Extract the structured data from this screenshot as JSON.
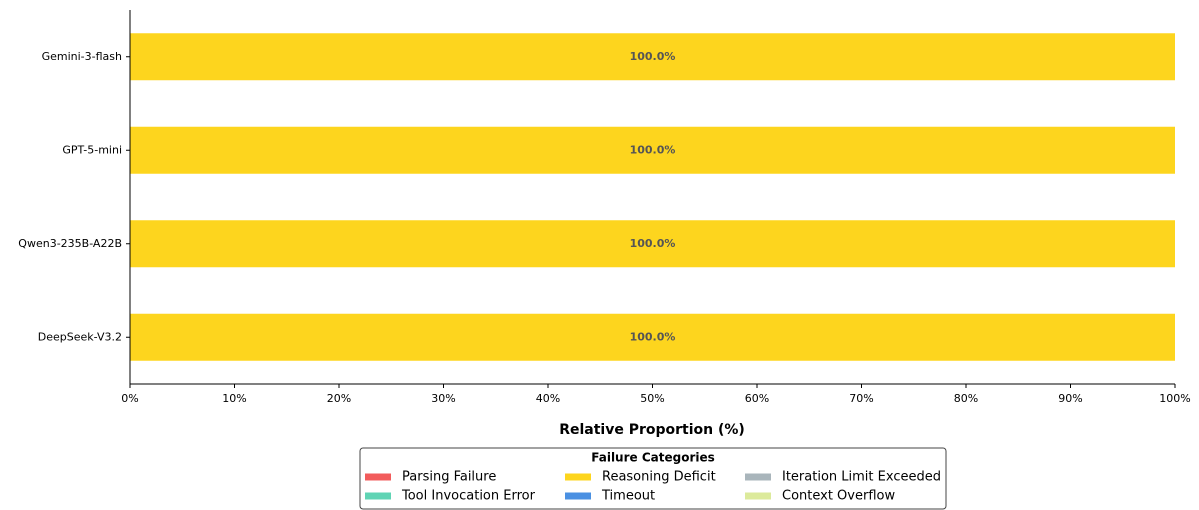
{
  "chart_data": {
    "type": "stacked-barh",
    "xlabel": "Relative Proportion (%)",
    "categories": [
      "Gemini-3-flash",
      "GPT-5-mini",
      "Qwen3-235B-A22B",
      "DeepSeek-V3.2"
    ],
    "series": [
      {
        "name": "Parsing Failure",
        "color": "#f25c5c",
        "values": [
          0,
          0,
          0,
          0
        ]
      },
      {
        "name": "Tool Invocation Error",
        "color": "#5fd4b4",
        "values": [
          0,
          0,
          0,
          0
        ]
      },
      {
        "name": "Reasoning Deficit",
        "color": "#fdd51e",
        "values": [
          100,
          100,
          100,
          100
        ],
        "value_labels": [
          "100.0%",
          "100.0%",
          "100.0%",
          "100.0%"
        ]
      },
      {
        "name": "Timeout",
        "color": "#4a90e2",
        "values": [
          0,
          0,
          0,
          0
        ]
      },
      {
        "name": "Iteration Limit Exceeded",
        "color": "#a9b5bb",
        "values": [
          0,
          0,
          0,
          0
        ]
      },
      {
        "name": "Context Overflow",
        "color": "#dcea9b",
        "values": [
          0,
          0,
          0,
          0
        ]
      }
    ],
    "xlim": [
      0,
      100
    ],
    "xticks": [
      {
        "value": 0,
        "label": "0%"
      },
      {
        "value": 10,
        "label": "10%"
      },
      {
        "value": 20,
        "label": "20%"
      },
      {
        "value": 30,
        "label": "30%"
      },
      {
        "value": 40,
        "label": "40%"
      },
      {
        "value": 50,
        "label": "50%"
      },
      {
        "value": 60,
        "label": "60%"
      },
      {
        "value": 70,
        "label": "70%"
      },
      {
        "value": 80,
        "label": "80%"
      },
      {
        "value": 90,
        "label": "90%"
      },
      {
        "value": 100,
        "label": "100%"
      }
    ],
    "legend_title": "Failure Categories",
    "legend": "lower center"
  }
}
